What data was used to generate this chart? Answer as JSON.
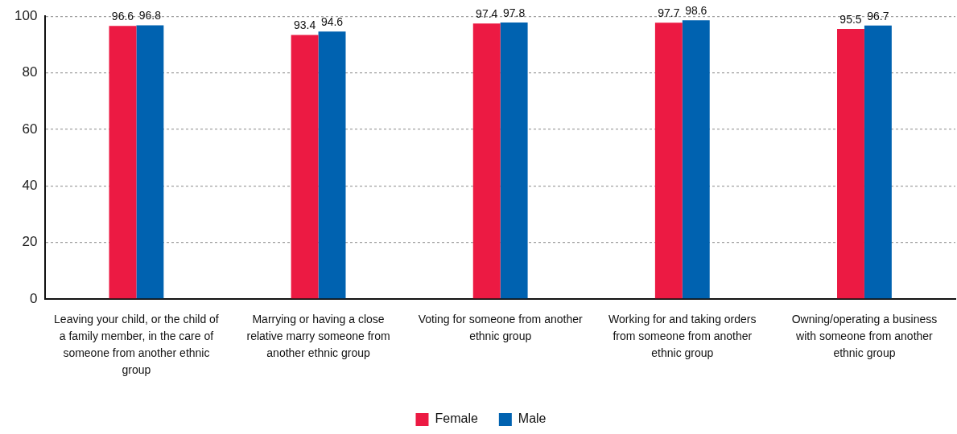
{
  "chart_data": {
    "type": "bar",
    "categories": [
      "Leaving your child, or the child of a family member, in the care of someone from another ethnic group",
      "Marrying or having a close relative marry someone from another ethnic group",
      "Voting for someone from another ethnic group",
      "Working for and taking orders from someone from another ethnic group",
      "Owning/operating a business with someone from another ethnic group"
    ],
    "series": [
      {
        "name": "Female",
        "color": "#ec1a43",
        "values": [
          96.6,
          93.4,
          97.4,
          97.7,
          95.5
        ]
      },
      {
        "name": "Male",
        "color": "#0062b0",
        "values": [
          96.8,
          94.6,
          97.8,
          98.6,
          96.7
        ]
      }
    ],
    "ylim": [
      0,
      100
    ],
    "yticks": [
      0,
      20,
      40,
      60,
      80,
      100
    ],
    "grid": "y",
    "legend": "bottom",
    "data_labels": true
  }
}
